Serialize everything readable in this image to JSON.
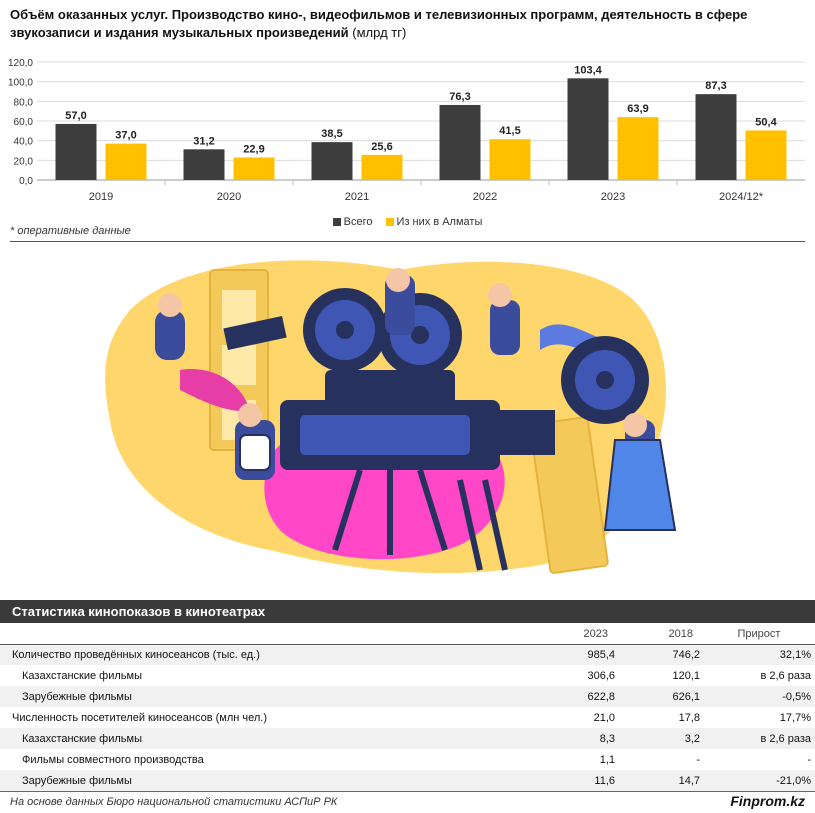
{
  "header": {
    "title": "Объём оказанных услуг. Производство кино-, видеофильмов и телевизионных программ, деятельность в сфере звукозаписи и издания музыкальных произведений",
    "unit": "(млрд тг)"
  },
  "chart_data": {
    "type": "bar",
    "categories": [
      "2019",
      "2020",
      "2021",
      "2022",
      "2023",
      "2024/12*"
    ],
    "series": [
      {
        "name": "Всего",
        "color": "#3d3d3d",
        "values": [
          57.0,
          31.2,
          38.5,
          76.3,
          103.4,
          87.3
        ]
      },
      {
        "name": "Из них в Алматы",
        "color": "#ffc000",
        "values": [
          37.0,
          22.9,
          25.6,
          41.5,
          63.9,
          50.4
        ]
      }
    ],
    "ylim": [
      0,
      120
    ],
    "yticks": [
      "0,0",
      "20,0",
      "40,0",
      "60,0",
      "80,0",
      "100,0",
      "120,0"
    ],
    "labels": [
      [
        "57,0",
        "31,2",
        "38,5",
        "76,3",
        "103,4",
        "87,3"
      ],
      [
        "37,0",
        "22,9",
        "25,6",
        "41,5",
        "63,9",
        "50,4"
      ]
    ],
    "grid": true,
    "legend": "bottom"
  },
  "footnote": "* оперативные данные",
  "table": {
    "title": "Статистика кинопоказов в кинотеатрах",
    "columns": [
      "2023",
      "2018",
      "Прирост"
    ],
    "rows": [
      {
        "label": "Количество проведённых киносеансов (тыс. ед.)",
        "v2023": "985,4",
        "v2018": "746,2",
        "growth": "32,1%"
      },
      {
        "label": "Казахстанские фильмы",
        "v2023": "306,6",
        "v2018": "120,1",
        "growth": "в 2,6 раза"
      },
      {
        "label": "Зарубежные фильмы",
        "v2023": "622,8",
        "v2018": "626,1",
        "growth": "-0,5%"
      },
      {
        "label": "Численность посетителей киносеансов (млн чел.)",
        "v2023": "21,0",
        "v2018": "17,8",
        "growth": "17,7%"
      },
      {
        "label": "Казахстанские фильмы",
        "v2023": "8,3",
        "v2018": "3,2",
        "growth": "в 2,6 раза"
      },
      {
        "label": "Фильмы совместного производства",
        "v2023": "1,1",
        "v2018": "-",
        "growth": "-"
      },
      {
        "label": "Зарубежные фильмы",
        "v2023": "11,6",
        "v2018": "14,7",
        "growth": "-21,0%"
      }
    ]
  },
  "source": "На основе данных Бюро национальной статистики АСПиР РК",
  "brand": "Finprom.kz"
}
